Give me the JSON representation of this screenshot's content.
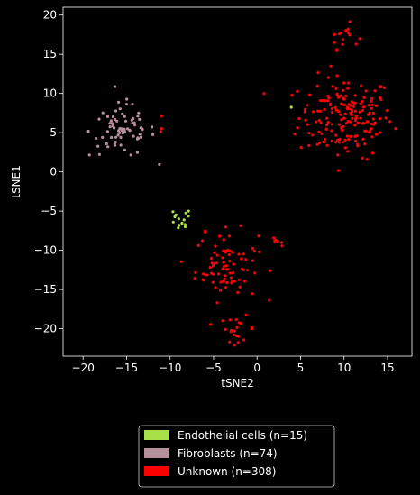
{
  "chart_data": {
    "type": "scatter",
    "xlabel": "tSNE2",
    "ylabel": "tSNE1",
    "xlim": [
      -22.3,
      17.8
    ],
    "ylim": [
      -23.5,
      21.0
    ],
    "xticks": [
      -20,
      -15,
      -10,
      -5,
      0,
      5,
      10,
      15
    ],
    "yticks": [
      -20,
      -15,
      -10,
      -5,
      0,
      5,
      10,
      15,
      20
    ],
    "grid": false,
    "legend_placement": "bottom-center",
    "background": "#000000",
    "series": [
      {
        "name": "Endothelial cells (n=15)",
        "color": "#a8e04a",
        "count": 15,
        "clusters": [
          {
            "cx": -9.0,
            "cy": -6.4,
            "sx": 0.7,
            "sy": 0.9,
            "n": 14
          },
          {
            "cx": 3.9,
            "cy": 8.2,
            "sx": 0.05,
            "sy": 0.05,
            "n": 1
          }
        ]
      },
      {
        "name": "Fibroblasts (n=74)",
        "color": "#b8909c",
        "count": 74,
        "clusters": [
          {
            "cx": -15.5,
            "cy": 5.3,
            "sx": 1.9,
            "sy": 1.7,
            "n": 74
          }
        ]
      },
      {
        "name": "Unknown (n=308)",
        "color": "#ff0000",
        "count": 308,
        "clusters": [
          {
            "cx": 10.2,
            "cy": 7.0,
            "sx": 2.7,
            "sy": 2.6,
            "n": 180
          },
          {
            "cx": 10.0,
            "cy": 17.3,
            "sx": 0.8,
            "sy": 0.8,
            "n": 16
          },
          {
            "cx": -3.5,
            "cy": -12.0,
            "sx": 1.8,
            "sy": 2.2,
            "n": 80
          },
          {
            "cx": -2.2,
            "cy": -20.0,
            "sx": 1.0,
            "sy": 0.8,
            "n": 20
          },
          {
            "cx": 2.3,
            "cy": -9.0,
            "sx": 0.6,
            "sy": 0.3,
            "n": 6
          },
          {
            "cx": -11.0,
            "cy": 5.5,
            "sx": 0.05,
            "sy": 1.3,
            "n": 4
          },
          {
            "cx": -6.0,
            "cy": -7.5,
            "sx": 0.1,
            "sy": 0.1,
            "n": 2
          }
        ]
      }
    ]
  }
}
